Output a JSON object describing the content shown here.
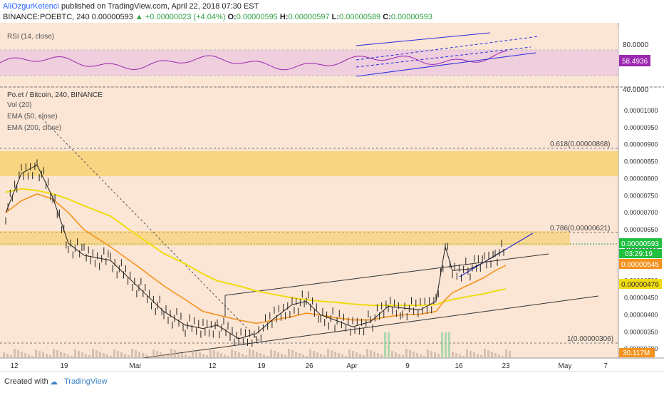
{
  "header": {
    "author": "AliOzgurKetenci",
    "published": "published on TradingView.com, April 22, 2018 07:30 EST",
    "symbol": "BINANCE:POEBTC, 240",
    "price": "0.00000593",
    "change": "▲ +0.00000023 (+4.04%)",
    "o_label": "O:",
    "o_val": "0.00000595",
    "h_label": "H:",
    "h_val": "0.00000597",
    "l_label": "L:",
    "l_val": "0.00000589",
    "c_label": "C:",
    "c_val": "0.00000593"
  },
  "rsi_panel": {
    "label": "RSI (14, close)",
    "ticks": [
      "80.0000",
      "40.0000"
    ],
    "current": "58.4936"
  },
  "main_panel": {
    "legend": [
      "Po.et / Bitcoin, 240, BINANCE",
      "Vol (20)",
      "EMA (50, close)",
      "EMA (200, close)"
    ],
    "fib_labels": [
      "0.618(0.00000868)",
      "0.786(0.00000621)",
      "1(0.00000306)"
    ],
    "price_tag": "0.00000593",
    "countdown": "03:29:19",
    "ema50_tag": "0.00000545",
    "ema200_tag": "0.00000476",
    "volume_tag": "30.117M"
  },
  "footer": {
    "created_with": "Created with",
    "brand": "TradingView"
  },
  "colors": {
    "ema50": "#f5921e",
    "ema200": "#f1dc10",
    "rsi": "#9c27b0",
    "zone": "#f7c94b",
    "trend": "#2b2be0"
  },
  "chart_data": {
    "type": "line",
    "title": "Po.et / Bitcoin, 240, BINANCE",
    "x_ticks": [
      "12",
      "19",
      "Mar",
      "12",
      "19",
      "26",
      "Apr",
      "9",
      "16",
      "23",
      "May",
      "7"
    ],
    "y_ticks": [
      "0.00001000",
      "0.00000950",
      "0.00000900",
      "0.00000850",
      "0.00000800",
      "0.00000750",
      "0.00000700",
      "0.00000650",
      "0.00000600",
      "0.00000550",
      "0.00000500",
      "0.00000450",
      "0.00000400",
      "0.00000350",
      "0.00000300"
    ],
    "ylim": [
      2.9e-06,
      1.05e-05
    ],
    "x": [
      "Feb 12",
      "Feb 14",
      "Feb 16",
      "Feb 18",
      "Feb 20",
      "Feb 22",
      "Feb 26",
      "Mar 3",
      "Mar 7",
      "Mar 10",
      "Mar 12",
      "Mar 14",
      "Mar 16",
      "Mar 18",
      "Mar 20",
      "Mar 22",
      "Mar 24",
      "Mar 26",
      "Mar 28",
      "Mar 31",
      "Apr 3",
      "Apr 5",
      "Apr 7",
      "Apr 9",
      "Apr 11",
      "Apr 13",
      "Apr 14",
      "Apr 16",
      "Apr 18",
      "Apr 20",
      "Apr 22"
    ],
    "series": [
      {
        "name": "Po.et / Bitcoin",
        "values": [
          7e-06,
          8.15e-06,
          8.4e-06,
          7.45e-06,
          6.1e-06,
          5.75e-06,
          5.6e-06,
          4.8e-06,
          4.1e-06,
          3.7e-06,
          3.6e-06,
          3.7e-06,
          3.3e-06,
          3.45e-06,
          3.9e-06,
          4.3e-06,
          4.4e-06,
          4e-06,
          3.85e-06,
          3.65e-06,
          3.8e-06,
          4.25e-06,
          4.2e-06,
          4.15e-06,
          4.4e-06,
          6e-06,
          5.3e-06,
          5.35e-06,
          5.55e-06,
          5.75e-06,
          5.93e-06
        ]
      },
      {
        "name": "EMA (50, close)",
        "values": [
          7e-06,
          7.35e-06,
          7.55e-06,
          7.4e-06,
          7e-06,
          6.5e-06,
          6e-06,
          5.4e-06,
          4.85e-06,
          4.45e-06,
          4.1e-06,
          4e-06,
          3.85e-06,
          3.75e-06,
          3.85e-06,
          3.95e-06,
          4.05e-06,
          4e-06,
          3.92e-06,
          3.85e-06,
          3.85e-06,
          3.95e-06,
          4e-06,
          4.02e-06,
          4.1e-06,
          4.45e-06,
          4.65e-06,
          4.9e-06,
          5.1e-06,
          5.3e-06,
          5.45e-06
        ]
      },
      {
        "name": "EMA (200, close)",
        "values": [
          7.6e-06,
          7.7e-06,
          7.65e-06,
          7.55e-06,
          7.4e-06,
          7.2e-06,
          6.9e-06,
          6.3e-06,
          5.8e-06,
          5.5e-06,
          5.2e-06,
          5e-06,
          4.85e-06,
          4.7e-06,
          4.6e-06,
          4.5e-06,
          4.45e-06,
          4.4e-06,
          4.37e-06,
          4.32e-06,
          4.28e-06,
          4.28e-06,
          4.28e-06,
          4.28e-06,
          4.3e-06,
          4.4e-06,
          4.45e-06,
          4.55e-06,
          4.62e-06,
          4.7e-06,
          4.76e-06
        ]
      }
    ]
  }
}
